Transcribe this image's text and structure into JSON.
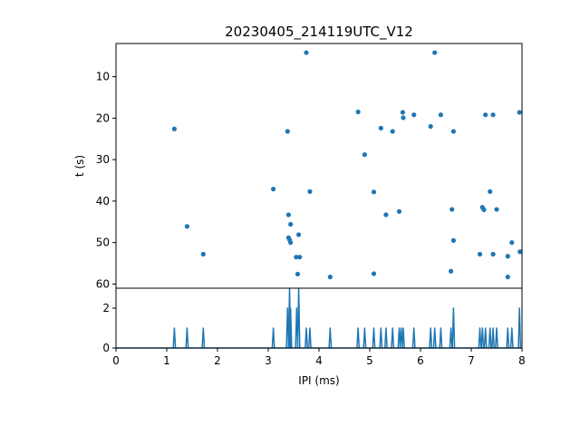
{
  "chart_data": [
    {
      "type": "scatter",
      "title": "20230405_214119UTC_V12",
      "xlabel": "",
      "ylabel": "t (s)",
      "xlim": [
        0,
        8
      ],
      "ylim": [
        61,
        2
      ],
      "y_inverted": true,
      "yticks": [
        10,
        20,
        30,
        40,
        50,
        60
      ],
      "grid": false,
      "color": "#1f77b4",
      "points": [
        [
          3.75,
          4.2
        ],
        [
          6.28,
          4.2
        ],
        [
          1.15,
          22.6
        ],
        [
          3.38,
          23.2
        ],
        [
          4.77,
          18.5
        ],
        [
          5.22,
          22.4
        ],
        [
          5.45,
          23.2
        ],
        [
          5.65,
          18.6
        ],
        [
          5.66,
          19.9
        ],
        [
          5.87,
          19.2
        ],
        [
          6.2,
          22.0
        ],
        [
          6.4,
          19.2
        ],
        [
          6.65,
          23.2
        ],
        [
          7.28,
          19.2
        ],
        [
          7.43,
          19.2
        ],
        [
          7.95,
          18.6
        ],
        [
          4.9,
          28.8
        ],
        [
          3.1,
          37.1
        ],
        [
          3.82,
          37.7
        ],
        [
          5.08,
          37.8
        ],
        [
          7.37,
          37.7
        ],
        [
          3.4,
          43.3
        ],
        [
          5.32,
          43.3
        ],
        [
          5.58,
          42.5
        ],
        [
          6.62,
          42.0
        ],
        [
          7.22,
          41.5
        ],
        [
          7.25,
          42.1
        ],
        [
          7.5,
          42.0
        ],
        [
          1.4,
          46.1
        ],
        [
          3.44,
          45.6
        ],
        [
          3.4,
          48.8
        ],
        [
          3.42,
          49.3
        ],
        [
          3.44,
          50.0
        ],
        [
          3.6,
          48.1
        ],
        [
          6.65,
          49.5
        ],
        [
          7.8,
          50.0
        ],
        [
          1.72,
          52.8
        ],
        [
          3.55,
          53.5
        ],
        [
          3.62,
          53.5
        ],
        [
          7.17,
          52.8
        ],
        [
          7.43,
          52.8
        ],
        [
          7.72,
          53.3
        ],
        [
          7.96,
          52.2
        ],
        [
          3.58,
          57.6
        ],
        [
          5.08,
          57.5
        ],
        [
          6.6,
          56.9
        ],
        [
          4.22,
          58.3
        ],
        [
          7.72,
          58.3
        ]
      ]
    },
    {
      "type": "line",
      "title": "",
      "xlabel": "IPI (ms)",
      "ylabel": "",
      "xlim": [
        0,
        8
      ],
      "ylim": [
        0,
        3
      ],
      "xticks": [
        0,
        1,
        2,
        3,
        4,
        5,
        6,
        7,
        8
      ],
      "yticks": [
        0,
        2
      ],
      "grid": false,
      "color": "#1f77b4",
      "spikes": [
        [
          1.15,
          1
        ],
        [
          1.4,
          1
        ],
        [
          1.72,
          1
        ],
        [
          3.1,
          1
        ],
        [
          3.38,
          2
        ],
        [
          3.42,
          3
        ],
        [
          3.44,
          2
        ],
        [
          3.56,
          2
        ],
        [
          3.6,
          3
        ],
        [
          3.75,
          1
        ],
        [
          3.82,
          1
        ],
        [
          4.22,
          1
        ],
        [
          4.77,
          1
        ],
        [
          4.9,
          1
        ],
        [
          5.08,
          1
        ],
        [
          5.22,
          1
        ],
        [
          5.32,
          1
        ],
        [
          5.45,
          1
        ],
        [
          5.58,
          1
        ],
        [
          5.62,
          1
        ],
        [
          5.66,
          1
        ],
        [
          5.87,
          1
        ],
        [
          6.2,
          1
        ],
        [
          6.28,
          1
        ],
        [
          6.4,
          1
        ],
        [
          6.6,
          1
        ],
        [
          6.65,
          2
        ],
        [
          7.17,
          1
        ],
        [
          7.22,
          1
        ],
        [
          7.28,
          1
        ],
        [
          7.37,
          1
        ],
        [
          7.43,
          1
        ],
        [
          7.5,
          1
        ],
        [
          7.72,
          1
        ],
        [
          7.8,
          1
        ],
        [
          7.95,
          2
        ]
      ]
    }
  ]
}
